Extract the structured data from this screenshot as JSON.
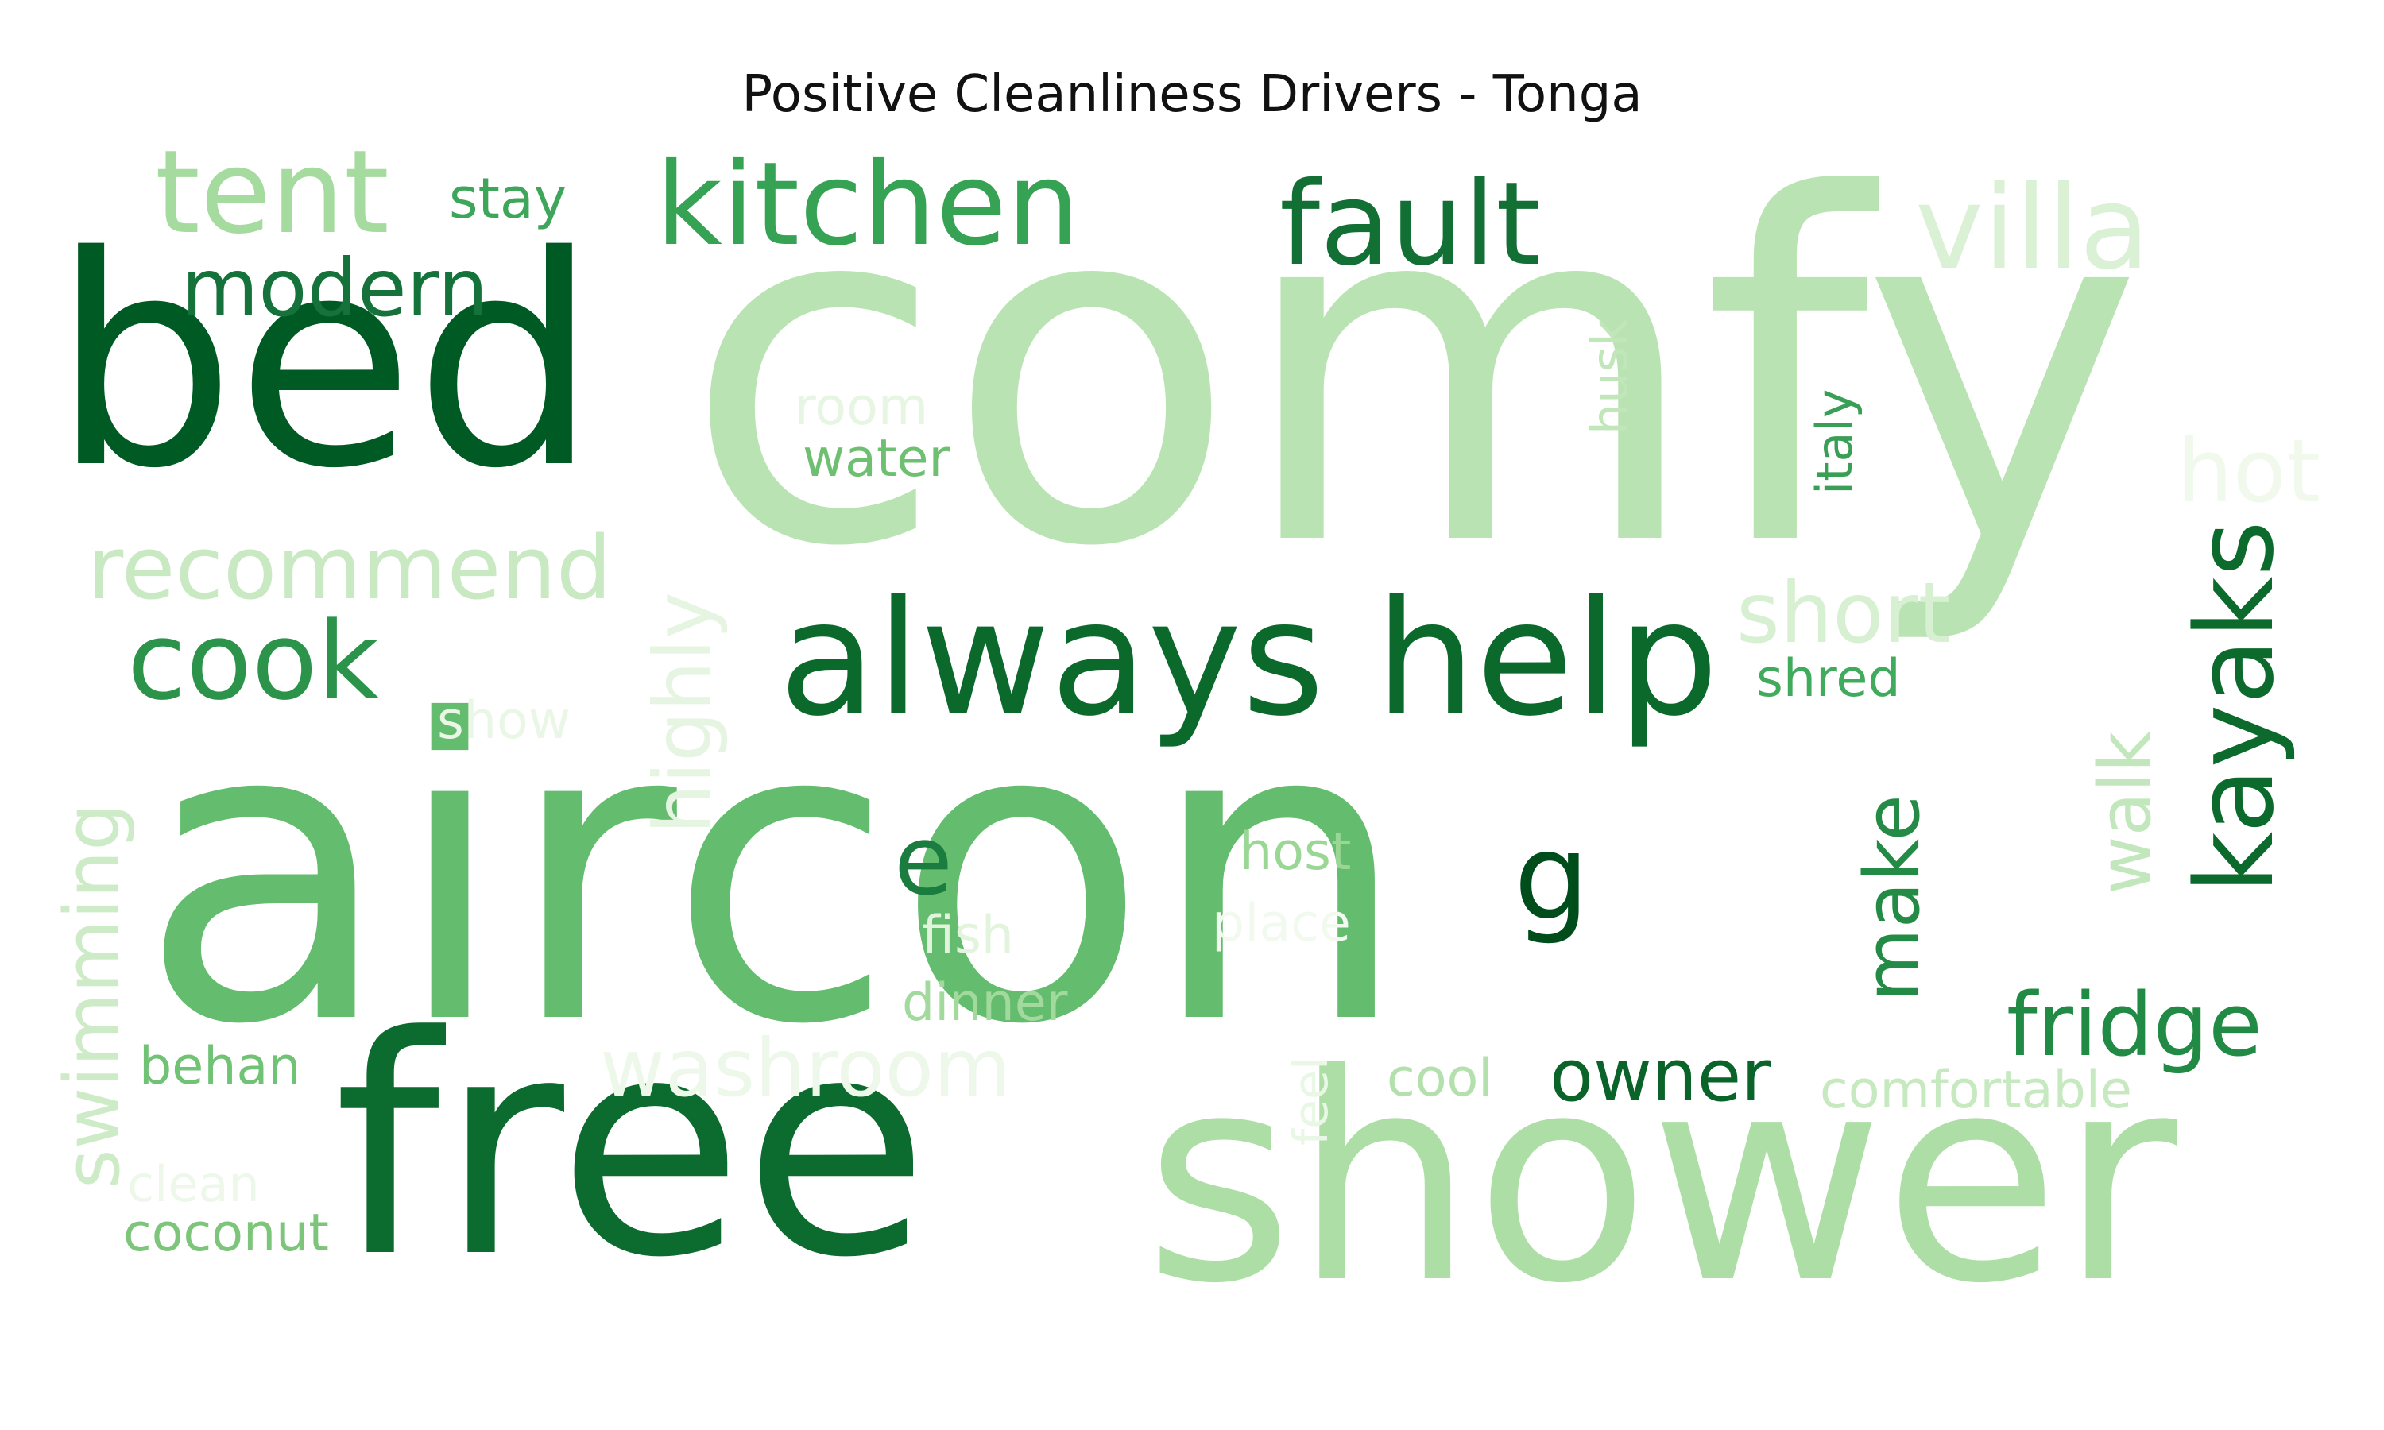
{
  "chart_data": {
    "type": "wordcloud",
    "title": "Positive Cleanliness Drivers - Tonga",
    "colormap": "Greens",
    "words": [
      {
        "text": "comfy",
        "weight": 1.0,
        "color": "#bae3b3",
        "vertical": false
      },
      {
        "text": "aircon",
        "weight": 0.95,
        "color": "#64bc6e",
        "vertical": false
      },
      {
        "text": "free",
        "weight": 0.72,
        "color": "#0c6b2e",
        "vertical": false
      },
      {
        "text": "shower",
        "weight": 0.7,
        "color": "#addea6",
        "vertical": false
      },
      {
        "text": "bed",
        "weight": 0.68,
        "color": "#005a24",
        "vertical": false
      },
      {
        "text": "always help",
        "weight": 0.4,
        "color": "#0b692c",
        "vertical": false
      },
      {
        "text": "kitchen",
        "weight": 0.3,
        "color": "#35a254",
        "vertical": false
      },
      {
        "text": "fault",
        "weight": 0.3,
        "color": "#127034",
        "vertical": false
      },
      {
        "text": "tent",
        "weight": 0.3,
        "color": "#a6dba0",
        "vertical": false
      },
      {
        "text": "villa",
        "weight": 0.3,
        "color": "#dbf1d6",
        "vertical": false
      },
      {
        "text": "cook",
        "weight": 0.28,
        "color": "#2b934a",
        "vertical": false
      },
      {
        "text": "kayaks",
        "weight": 0.28,
        "color": "#0c6a2d",
        "vertical": true
      },
      {
        "text": "recommend",
        "weight": 0.22,
        "color": "#c8e9c1",
        "vertical": false
      },
      {
        "text": "highly",
        "weight": 0.22,
        "color": "#e5f5e1",
        "vertical": true
      },
      {
        "text": "modern",
        "weight": 0.2,
        "color": "#14723a",
        "vertical": false
      },
      {
        "text": "short",
        "weight": 0.2,
        "color": "#d8f0d2",
        "vertical": false
      },
      {
        "text": "hot",
        "weight": 0.2,
        "color": "#f0f9ec",
        "vertical": false
      },
      {
        "text": "g",
        "weight": 0.2,
        "color": "#004d1c",
        "vertical": false
      },
      {
        "text": "e",
        "weight": 0.18,
        "color": "#1a7c3f",
        "vertical": false
      },
      {
        "text": "make",
        "weight": 0.18,
        "color": "#238b45",
        "vertical": true
      },
      {
        "text": "walk",
        "weight": 0.18,
        "color": "#c3e7bc",
        "vertical": true
      },
      {
        "text": "fridge",
        "weight": 0.18,
        "color": "#218a44",
        "vertical": false
      },
      {
        "text": "washroom",
        "weight": 0.18,
        "color": "#eef8ea",
        "vertical": false
      },
      {
        "text": "swimming",
        "weight": 0.18,
        "color": "#cdebc7",
        "vertical": true
      },
      {
        "text": "owner",
        "weight": 0.14,
        "color": "#0a6329",
        "vertical": false
      },
      {
        "text": "stay",
        "weight": 0.1,
        "color": "#3da65a",
        "vertical": false
      },
      {
        "text": "room",
        "weight": 0.1,
        "color": "#e7f6e3",
        "vertical": false
      },
      {
        "text": "water",
        "weight": 0.1,
        "color": "#6fbf73",
        "vertical": false
      },
      {
        "text": "husk",
        "weight": 0.1,
        "color": "#c0e6b9",
        "vertical": true
      },
      {
        "text": "italy",
        "weight": 0.1,
        "color": "#3a9f56",
        "vertical": true
      },
      {
        "text": "shred",
        "weight": 0.1,
        "color": "#41ab5d",
        "vertical": false
      },
      {
        "text": "show",
        "weight": 0.1,
        "color": "#eaf7e6",
        "vertical": false
      },
      {
        "text": "host",
        "weight": 0.1,
        "color": "#9ad795",
        "vertical": false
      },
      {
        "text": "place",
        "weight": 0.1,
        "color": "#f2faef",
        "vertical": false
      },
      {
        "text": "fish",
        "weight": 0.1,
        "color": "#e2f4dd",
        "vertical": false
      },
      {
        "text": "dinner",
        "weight": 0.1,
        "color": "#a2d99c",
        "vertical": false
      },
      {
        "text": "behan",
        "weight": 0.1,
        "color": "#70c274",
        "vertical": false
      },
      {
        "text": "cool",
        "weight": 0.1,
        "color": "#b3e0ac",
        "vertical": false
      },
      {
        "text": "comfortable",
        "weight": 0.1,
        "color": "#c7e9c0",
        "vertical": false
      },
      {
        "text": "feel",
        "weight": 0.08,
        "color": "#e9f7e5",
        "vertical": true
      },
      {
        "text": "clean",
        "weight": 0.1,
        "color": "#eef8ea",
        "vertical": false
      },
      {
        "text": "coconut",
        "weight": 0.1,
        "color": "#7cc57a",
        "vertical": false
      }
    ]
  }
}
